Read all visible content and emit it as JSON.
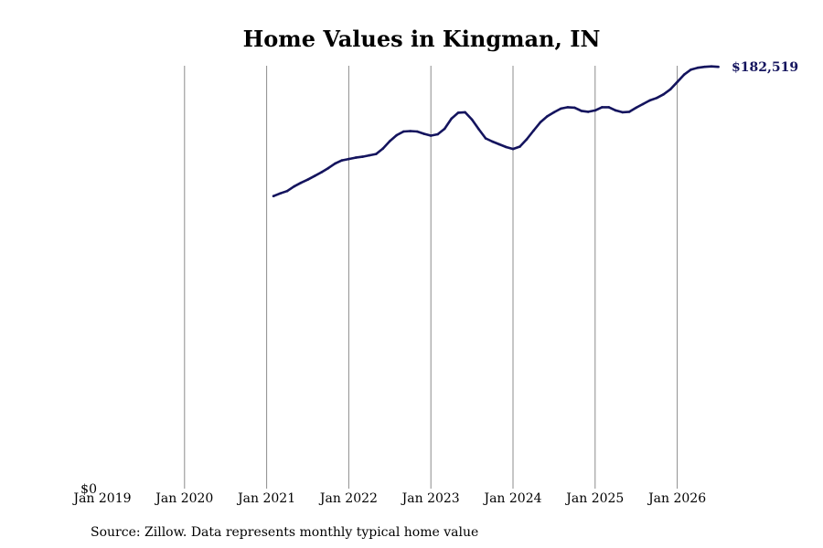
{
  "chart_data": {
    "type": "line",
    "title": "Home Values in Kingman, IN",
    "source": "Source: Zillow. Data represents monthly typical home value",
    "x_ticks": [
      "Jan 2019",
      "Jan 2020",
      "Jan 2021",
      "Jan 2022",
      "Jan 2023",
      "Jan 2024",
      "Jan 2025",
      "Jan 2026"
    ],
    "y_zero_label": "$0",
    "end_label": "$182,519",
    "ylim": [
      0,
      182519
    ],
    "xlim": [
      "2019-01",
      "2026-07"
    ],
    "grid": "vertical",
    "line_color": "#14145e",
    "grid_color": "#8c8c8c",
    "series": [
      {
        "values": [
          [
            "2021-02",
            127905
          ],
          [
            "2021-03",
            129108
          ],
          [
            "2021-04",
            130109
          ],
          [
            "2021-05",
            132114
          ],
          [
            "2021-06",
            133717
          ],
          [
            "2021-07",
            135121
          ],
          [
            "2021-08",
            136724
          ],
          [
            "2021-09",
            138328
          ],
          [
            "2021-10",
            140131
          ],
          [
            "2021-11",
            142136
          ],
          [
            "2021-12",
            143540
          ],
          [
            "2022-01",
            144140
          ],
          [
            "2022-02",
            144742
          ],
          [
            "2022-03",
            145142
          ],
          [
            "2022-04",
            145743
          ],
          [
            "2022-05",
            146345
          ],
          [
            "2022-06",
            148750
          ],
          [
            "2022-07",
            151957
          ],
          [
            "2022-08",
            154563
          ],
          [
            "2022-09",
            156167
          ],
          [
            "2022-10",
            156367
          ],
          [
            "2022-11",
            156167
          ],
          [
            "2022-12",
            155165
          ],
          [
            "2023-01",
            154363
          ],
          [
            "2023-02",
            154964
          ],
          [
            "2023-03",
            157370
          ],
          [
            "2023-04",
            161781
          ],
          [
            "2023-05",
            164387
          ],
          [
            "2023-06",
            164587
          ],
          [
            "2023-07",
            161380
          ],
          [
            "2023-08",
            157170
          ],
          [
            "2023-09",
            153160
          ],
          [
            "2023-10",
            151757
          ],
          [
            "2023-11",
            150554
          ],
          [
            "2023-12",
            149351
          ],
          [
            "2024-01",
            148549
          ],
          [
            "2024-02",
            149552
          ],
          [
            "2024-03",
            152758
          ],
          [
            "2024-04",
            156568
          ],
          [
            "2024-05",
            160176
          ],
          [
            "2024-06",
            162782
          ],
          [
            "2024-07",
            164587
          ],
          [
            "2024-08",
            166190
          ],
          [
            "2024-09",
            166792
          ],
          [
            "2024-10",
            166591
          ],
          [
            "2024-11",
            165188
          ],
          [
            "2024-12",
            164788
          ],
          [
            "2025-01",
            165389
          ],
          [
            "2025-02",
            166792
          ],
          [
            "2025-03",
            166792
          ],
          [
            "2025-04",
            165389
          ],
          [
            "2025-05",
            164587
          ],
          [
            "2025-06",
            164788
          ],
          [
            "2025-07",
            166592
          ],
          [
            "2025-08",
            168195
          ],
          [
            "2025-09",
            169798
          ],
          [
            "2025-10",
            170801
          ],
          [
            "2025-11",
            172404
          ],
          [
            "2025-12",
            174609
          ],
          [
            "2026-01",
            177816
          ],
          [
            "2026-02",
            181023
          ],
          [
            "2026-03",
            183228
          ],
          [
            "2026-04",
            184031
          ],
          [
            "2026-05",
            184432
          ],
          [
            "2026-06",
            184632
          ],
          [
            "2026-07",
            184432
          ]
        ]
      }
    ]
  }
}
